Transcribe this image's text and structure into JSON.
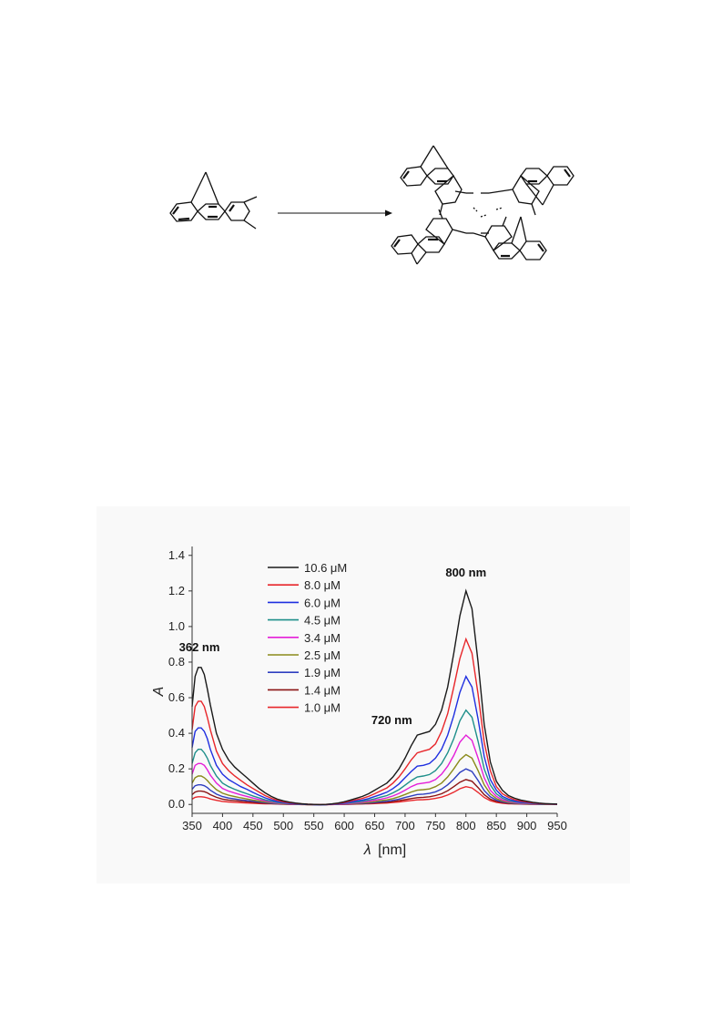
{
  "chart_data": {
    "type": "line",
    "ylabel": "A",
    "xlabel_symbol": "λ",
    "xlabel_unit": "[nm]",
    "xlim": [
      350,
      950
    ],
    "ylim": [
      -0.05,
      1.45
    ],
    "x_ticks": [
      "350",
      "400",
      "450",
      "500",
      "550",
      "600",
      "650",
      "700",
      "750",
      "800",
      "850",
      "900",
      "950"
    ],
    "y_ticks": [
      "0.0",
      "0.2",
      "0.4",
      "0.6",
      "0.8",
      "1.0",
      "1.2",
      "1.4"
    ],
    "grid": false,
    "legend_position": "top-left",
    "annotations": [
      {
        "text": "362 nm",
        "x": 362,
        "y": 0.77
      },
      {
        "text": "720 nm",
        "x": 720,
        "y": 0.4
      },
      {
        "text": "800 nm",
        "x": 800,
        "y": 1.2
      }
    ],
    "x": [
      350,
      355,
      360,
      365,
      370,
      375,
      380,
      390,
      400,
      410,
      420,
      430,
      440,
      450,
      460,
      470,
      480,
      490,
      500,
      510,
      520,
      530,
      540,
      550,
      560,
      570,
      580,
      590,
      600,
      610,
      620,
      630,
      640,
      650,
      660,
      670,
      680,
      690,
      700,
      710,
      720,
      730,
      740,
      750,
      760,
      770,
      780,
      790,
      800,
      810,
      820,
      830,
      840,
      850,
      860,
      870,
      880,
      890,
      900,
      910,
      920,
      930,
      940,
      950
    ],
    "series": [
      {
        "name": "10.6 μM",
        "color": "#1a1a1a",
        "values": [
          0.55,
          0.72,
          0.77,
          0.77,
          0.73,
          0.65,
          0.56,
          0.4,
          0.31,
          0.25,
          0.21,
          0.18,
          0.15,
          0.12,
          0.09,
          0.065,
          0.045,
          0.03,
          0.02,
          0.013,
          0.008,
          0.004,
          0.001,
          0.0,
          -0.001,
          0.0,
          0.003,
          0.008,
          0.015,
          0.025,
          0.035,
          0.045,
          0.06,
          0.08,
          0.1,
          0.12,
          0.155,
          0.2,
          0.26,
          0.33,
          0.39,
          0.4,
          0.41,
          0.45,
          0.53,
          0.66,
          0.85,
          1.06,
          1.2,
          1.1,
          0.8,
          0.45,
          0.24,
          0.13,
          0.08,
          0.05,
          0.035,
          0.025,
          0.018,
          0.012,
          0.008,
          0.005,
          0.003,
          0.002
        ]
      },
      {
        "name": "8.0 μM",
        "color": "#e8262a",
        "values": [
          0.42,
          0.55,
          0.58,
          0.58,
          0.55,
          0.49,
          0.42,
          0.3,
          0.23,
          0.19,
          0.16,
          0.135,
          0.11,
          0.09,
          0.07,
          0.05,
          0.035,
          0.023,
          0.015,
          0.01,
          0.006,
          0.003,
          0.001,
          0.0,
          -0.001,
          0.0,
          0.002,
          0.006,
          0.011,
          0.019,
          0.027,
          0.034,
          0.045,
          0.06,
          0.077,
          0.093,
          0.12,
          0.155,
          0.2,
          0.25,
          0.29,
          0.3,
          0.31,
          0.34,
          0.41,
          0.51,
          0.66,
          0.82,
          0.93,
          0.85,
          0.62,
          0.35,
          0.19,
          0.1,
          0.06,
          0.04,
          0.027,
          0.019,
          0.014,
          0.009,
          0.006,
          0.004,
          0.002,
          0.001
        ]
      },
      {
        "name": "6.0 μM",
        "color": "#1f2fe0",
        "values": [
          0.32,
          0.41,
          0.43,
          0.43,
          0.41,
          0.37,
          0.31,
          0.22,
          0.17,
          0.14,
          0.12,
          0.1,
          0.085,
          0.068,
          0.052,
          0.037,
          0.026,
          0.017,
          0.011,
          0.007,
          0.004,
          0.002,
          0.0,
          -0.001,
          -0.002,
          -0.001,
          0.001,
          0.004,
          0.008,
          0.014,
          0.02,
          0.025,
          0.033,
          0.044,
          0.056,
          0.069,
          0.089,
          0.115,
          0.15,
          0.185,
          0.215,
          0.22,
          0.23,
          0.26,
          0.31,
          0.39,
          0.5,
          0.63,
          0.72,
          0.66,
          0.48,
          0.27,
          0.14,
          0.08,
          0.045,
          0.03,
          0.02,
          0.014,
          0.01,
          0.007,
          0.005,
          0.003,
          0.002,
          0.001
        ]
      },
      {
        "name": "4.5 μM",
        "color": "#1e8f8a",
        "values": [
          0.23,
          0.29,
          0.31,
          0.31,
          0.29,
          0.26,
          0.22,
          0.16,
          0.12,
          0.1,
          0.085,
          0.072,
          0.06,
          0.048,
          0.037,
          0.026,
          0.018,
          0.012,
          0.008,
          0.005,
          0.003,
          0.001,
          0.0,
          -0.001,
          -0.002,
          -0.001,
          0.001,
          0.003,
          0.006,
          0.01,
          0.014,
          0.018,
          0.024,
          0.032,
          0.041,
          0.05,
          0.065,
          0.083,
          0.108,
          0.134,
          0.155,
          0.16,
          0.168,
          0.19,
          0.23,
          0.29,
          0.37,
          0.47,
          0.53,
          0.49,
          0.355,
          0.2,
          0.11,
          0.06,
          0.035,
          0.022,
          0.015,
          0.011,
          0.008,
          0.005,
          0.004,
          0.002,
          0.001,
          0.001
        ]
      },
      {
        "name": "3.4 μM",
        "color": "#e41ed8",
        "values": [
          0.17,
          0.22,
          0.23,
          0.23,
          0.22,
          0.195,
          0.165,
          0.12,
          0.09,
          0.075,
          0.064,
          0.054,
          0.045,
          0.036,
          0.028,
          0.02,
          0.014,
          0.009,
          0.006,
          0.004,
          0.002,
          0.001,
          0.0,
          -0.001,
          -0.002,
          -0.001,
          0.0,
          0.002,
          0.004,
          0.007,
          0.01,
          0.013,
          0.018,
          0.024,
          0.03,
          0.037,
          0.048,
          0.062,
          0.08,
          0.1,
          0.115,
          0.12,
          0.125,
          0.14,
          0.17,
          0.215,
          0.275,
          0.35,
          0.39,
          0.36,
          0.26,
          0.15,
          0.08,
          0.045,
          0.026,
          0.017,
          0.011,
          0.008,
          0.006,
          0.004,
          0.003,
          0.002,
          0.001,
          0.0
        ]
      },
      {
        "name": "2.5 μM",
        "color": "#8a8a1a",
        "values": [
          0.12,
          0.15,
          0.16,
          0.16,
          0.15,
          0.135,
          0.115,
          0.083,
          0.063,
          0.052,
          0.044,
          0.037,
          0.031,
          0.025,
          0.019,
          0.014,
          0.01,
          0.006,
          0.004,
          0.003,
          0.001,
          0.0,
          -0.001,
          -0.001,
          -0.002,
          -0.001,
          0.0,
          0.001,
          0.003,
          0.005,
          0.007,
          0.009,
          0.012,
          0.016,
          0.021,
          0.026,
          0.033,
          0.043,
          0.056,
          0.07,
          0.08,
          0.083,
          0.087,
          0.1,
          0.12,
          0.155,
          0.2,
          0.25,
          0.28,
          0.26,
          0.19,
          0.11,
          0.06,
          0.033,
          0.019,
          0.012,
          0.008,
          0.006,
          0.004,
          0.003,
          0.002,
          0.001,
          0.001,
          0.0
        ]
      },
      {
        "name": "1.9 μM",
        "color": "#2f3fc0",
        "values": [
          0.085,
          0.105,
          0.11,
          0.11,
          0.105,
          0.095,
          0.08,
          0.058,
          0.044,
          0.036,
          0.031,
          0.026,
          0.022,
          0.018,
          0.014,
          0.01,
          0.007,
          0.004,
          0.003,
          0.002,
          0.001,
          0.0,
          -0.001,
          -0.001,
          -0.002,
          -0.001,
          0.0,
          0.001,
          0.002,
          0.003,
          0.005,
          0.006,
          0.008,
          0.011,
          0.015,
          0.018,
          0.023,
          0.03,
          0.039,
          0.048,
          0.056,
          0.058,
          0.062,
          0.071,
          0.086,
          0.11,
          0.142,
          0.18,
          0.2,
          0.185,
          0.135,
          0.078,
          0.043,
          0.024,
          0.014,
          0.009,
          0.006,
          0.004,
          0.003,
          0.002,
          0.001,
          0.001,
          0.0,
          0.0
        ]
      },
      {
        "name": "1.4 μM",
        "color": "#8b1414",
        "values": [
          0.055,
          0.07,
          0.075,
          0.075,
          0.072,
          0.065,
          0.055,
          0.04,
          0.03,
          0.025,
          0.021,
          0.018,
          0.015,
          0.012,
          0.009,
          0.007,
          0.005,
          0.003,
          0.002,
          0.001,
          0.0,
          0.0,
          -0.001,
          -0.001,
          -0.002,
          -0.001,
          0.0,
          0.0,
          0.001,
          0.002,
          0.003,
          0.004,
          0.006,
          0.008,
          0.01,
          0.012,
          0.016,
          0.021,
          0.027,
          0.033,
          0.038,
          0.04,
          0.043,
          0.05,
          0.06,
          0.077,
          0.1,
          0.125,
          0.14,
          0.13,
          0.095,
          0.055,
          0.03,
          0.017,
          0.01,
          0.006,
          0.004,
          0.003,
          0.002,
          0.001,
          0.001,
          0.0,
          0.0,
          0.0
        ]
      },
      {
        "name": "1.0 μM",
        "color": "#e8262a",
        "values": [
          0.03,
          0.04,
          0.043,
          0.043,
          0.041,
          0.037,
          0.031,
          0.023,
          0.017,
          0.014,
          0.012,
          0.01,
          0.008,
          0.007,
          0.005,
          0.004,
          0.003,
          0.002,
          0.001,
          0.0,
          0.0,
          -0.001,
          -0.001,
          -0.002,
          -0.002,
          -0.001,
          -0.001,
          0.0,
          0.0,
          0.001,
          0.002,
          0.003,
          0.004,
          0.005,
          0.007,
          0.008,
          0.011,
          0.014,
          0.018,
          0.022,
          0.026,
          0.027,
          0.029,
          0.034,
          0.041,
          0.053,
          0.069,
          0.088,
          0.1,
          0.093,
          0.068,
          0.039,
          0.021,
          0.012,
          0.007,
          0.004,
          0.003,
          0.002,
          0.001,
          0.001,
          0.0,
          0.0,
          0.0,
          0.0
        ]
      }
    ]
  }
}
